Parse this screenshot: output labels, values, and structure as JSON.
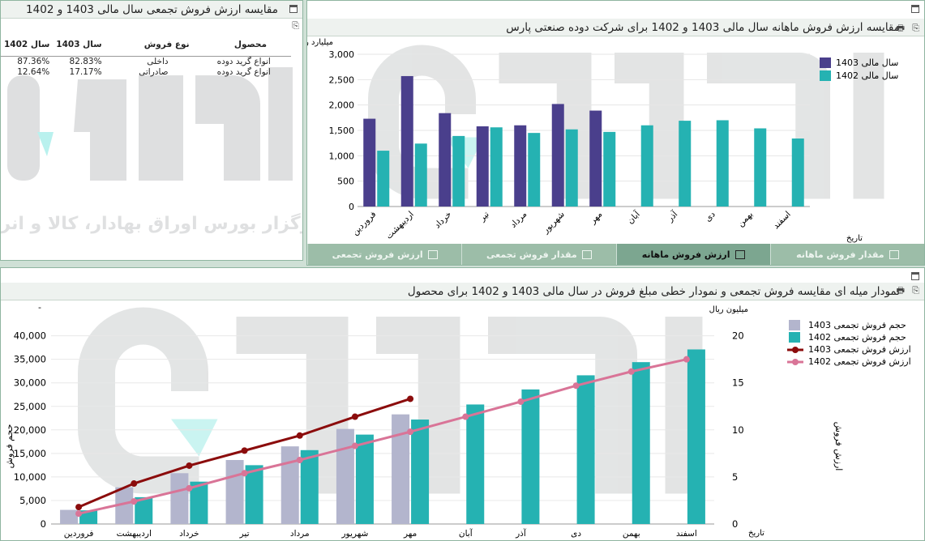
{
  "panel_top_left": {
    "title": "مقایسه ارزش فروش تجمعی سال مالی 1403 و 1402",
    "table": {
      "headers": [
        "سال 1402",
        "سال 1403",
        "نوع فروش",
        "محصول"
      ],
      "rows": [
        [
          "87.36%",
          "82.83%",
          "داخلی",
          "انواع گرید دوده"
        ],
        [
          "12.64%",
          "17.17%",
          "صادراتی",
          "انواع گرید دوده"
        ]
      ]
    },
    "watermark_text": "کارگزار بورس اوراق بهادار، کالا و انرژی"
  },
  "panel_top_right": {
    "title": "مقایسه ارزش فروش ماهانه سال مالی 1403 و 1402 برای شرکت دوده صنعتی پارس",
    "tabs": [
      {
        "label": "مقدار فروش ماهانه",
        "icon": "bar-chart-icon",
        "active": false
      },
      {
        "label": "ارزش فروش ماهانه",
        "icon": "bar-chart-icon",
        "active": true
      },
      {
        "label": "مقدار فروش تجمعی",
        "icon": "line-chart-icon",
        "active": false
      },
      {
        "label": "ارزش فروش تجمعی",
        "icon": "line-chart-icon",
        "active": false
      }
    ]
  },
  "panel_bottom": {
    "title": "نمودار میله ای مقایسه فروش تجمعی و نمودار خطی مبلغ فروش در سال مالی 1403 و 1402 برای محصول"
  },
  "colors": {
    "s1403": "#4a3f8c",
    "s1402": "#25b2b2",
    "bar1403_cum": "#b3b5cd",
    "line1403": "#8b0c0c",
    "line1402": "#d97497"
  },
  "chart_data": [
    {
      "type": "bar",
      "ylabel": "میلیارد ریال",
      "xlabel": "تاریخ",
      "ylim": [
        0,
        3000
      ],
      "yticks": [
        "0",
        "500",
        "1,000",
        "1,500",
        "2,000",
        "2,500",
        "3,000"
      ],
      "legend_position": "right",
      "categories": [
        "فروردین",
        "اردیبهشت",
        "خرداد",
        "تیر",
        "مرداد",
        "شهریور",
        "مهر",
        "آبان",
        "آذر",
        "دی",
        "بهمن",
        "اسفند"
      ],
      "series": [
        {
          "name": "سال مالی 1403",
          "values": [
            1730,
            2570,
            1840,
            1580,
            1600,
            2020,
            1890,
            null,
            null,
            null,
            null,
            null
          ]
        },
        {
          "name": "سال مالی 1402",
          "values": [
            1100,
            1240,
            1390,
            1560,
            1450,
            1520,
            1470,
            1600,
            1690,
            1700,
            1540,
            1340
          ]
        }
      ]
    },
    {
      "type": "bar+line",
      "ylabel_left": "حجم فروش",
      "ylabel_right": "ارزش فروش",
      "y2_unit": "میلیون ریال",
      "xlabel": "تاریخ",
      "ylim_left": [
        0,
        42000
      ],
      "ylim_right": [
        0,
        21
      ],
      "yticks_left": [
        "0",
        "5,000",
        "10,000",
        "15,000",
        "20,000",
        "25,000",
        "30,000",
        "35,000",
        "40,000"
      ],
      "yticks_right": [
        "0",
        "5",
        "10",
        "15",
        "20"
      ],
      "legend_position": "right",
      "categories": [
        "فروردین",
        "اردیبهشت",
        "خرداد",
        "تیر",
        "مرداد",
        "شهریور",
        "مهر",
        "آبان",
        "آذر",
        "دی",
        "بهمن",
        "اسفند"
      ],
      "bar_series": [
        {
          "name": "حجم فروش تجمعی 1403",
          "values": [
            3000,
            7800,
            10800,
            13600,
            16500,
            20200,
            23300,
            null,
            null,
            null,
            null,
            null
          ]
        },
        {
          "name": "حجم فروش تجمعی 1402",
          "values": [
            2900,
            5700,
            9000,
            12500,
            15700,
            19000,
            22200,
            25400,
            28600,
            31600,
            34400,
            37100
          ]
        }
      ],
      "line_series": [
        {
          "name": "ارزش فروش تجمعی 1403",
          "values": [
            1.8,
            4.3,
            6.2,
            7.8,
            9.4,
            11.4,
            13.3,
            null,
            null,
            null,
            null,
            null
          ]
        },
        {
          "name": "ارزش فروش تجمعی 1402",
          "values": [
            1.1,
            2.4,
            3.8,
            5.4,
            6.8,
            8.3,
            9.8,
            11.4,
            13.0,
            14.7,
            16.2,
            17.5
          ]
        }
      ]
    }
  ]
}
